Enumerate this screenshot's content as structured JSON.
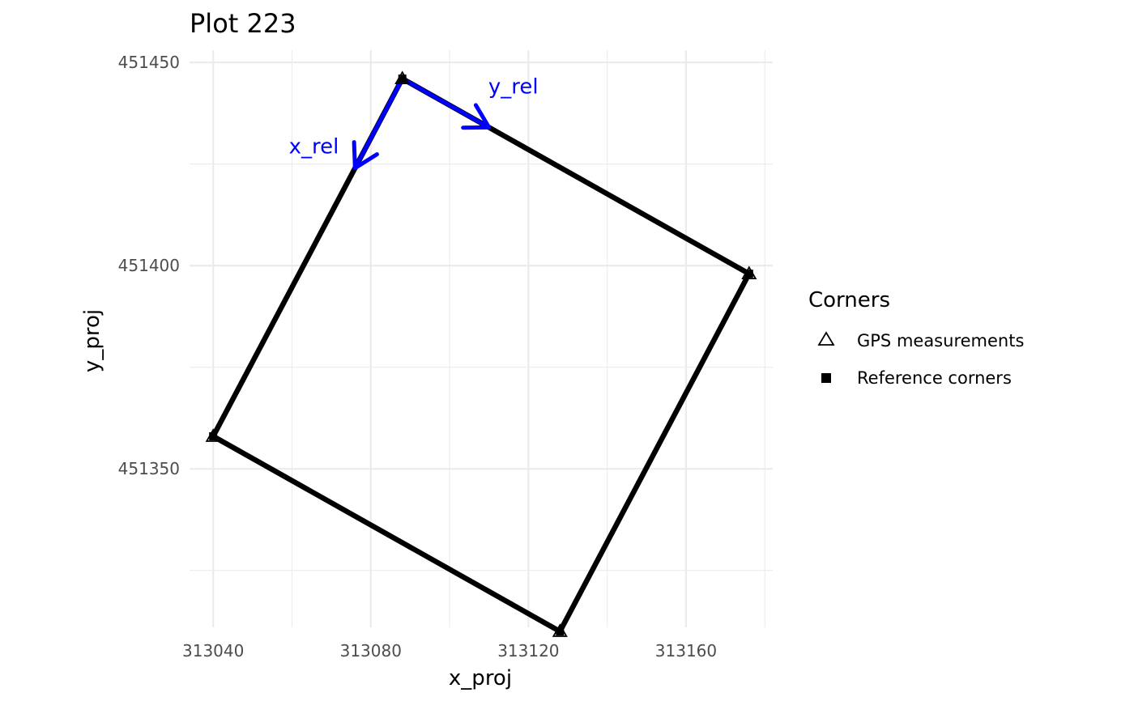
{
  "chart_data": {
    "type": "scatter",
    "title": "Plot 223",
    "xlabel": "x_proj",
    "ylabel": "y_proj",
    "xlim": [
      313034,
      313182
    ],
    "ylim": [
      451311,
      451453
    ],
    "x_ticks": [
      313040,
      313080,
      313120,
      313160
    ],
    "y_ticks": [
      451350,
      451400,
      451450
    ],
    "grid": true,
    "legend": {
      "title": "Corners",
      "position": "right",
      "entries": [
        {
          "label": "GPS measurements",
          "shape": "open-triangle"
        },
        {
          "label": "Reference corners",
          "shape": "filled-square"
        }
      ]
    },
    "polygon": {
      "color": "#000000",
      "points": [
        {
          "x": 313088,
          "y": 451446
        },
        {
          "x": 313176,
          "y": 451398
        },
        {
          "x": 313128,
          "y": 451310
        },
        {
          "x": 313040,
          "y": 451358
        }
      ]
    },
    "series": [
      {
        "name": "GPS measurements",
        "shape": "open-triangle",
        "points": [
          {
            "x": 313088,
            "y": 451446
          },
          {
            "x": 313176,
            "y": 451398
          },
          {
            "x": 313128,
            "y": 451310
          },
          {
            "x": 313040,
            "y": 451358
          }
        ]
      },
      {
        "name": "Reference corners",
        "shape": "filled-square",
        "points": [
          {
            "x": 313088,
            "y": 451446
          },
          {
            "x": 313176,
            "y": 451398
          },
          {
            "x": 313128,
            "y": 451310
          },
          {
            "x": 313040,
            "y": 451358
          }
        ]
      }
    ],
    "arrows": [
      {
        "label": "x_rel",
        "color": "#0000ff",
        "from": {
          "x": 313088,
          "y": 451446
        },
        "to": {
          "x": 313076,
          "y": 451424
        }
      },
      {
        "label": "y_rel",
        "color": "#0000ff",
        "from": {
          "x": 313088,
          "y": 451446
        },
        "to": {
          "x": 313110,
          "y": 451434
        }
      }
    ]
  }
}
